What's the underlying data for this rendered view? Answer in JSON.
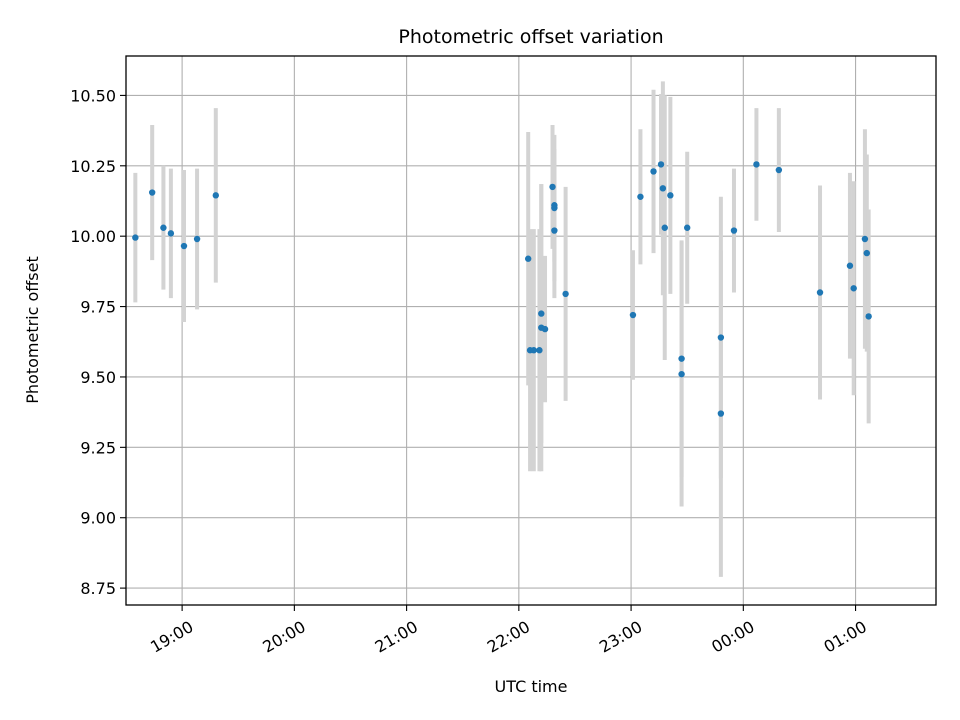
{
  "chart_data": {
    "type": "scatter",
    "title": "Photometric offset variation",
    "xlabel": "UTC time",
    "ylabel": "Photometric offset",
    "x_unit": "UTC time (HH:MM)",
    "xlim": [
      "18:30",
      "01:43"
    ],
    "ylim": [
      8.69,
      10.64
    ],
    "grid": true,
    "x_ticks": [
      "19:00",
      "20:00",
      "21:00",
      "22:00",
      "23:00",
      "00:00",
      "01:00"
    ],
    "y_ticks": [
      "8.75",
      "9.00",
      "9.25",
      "9.50",
      "9.75",
      "10.00",
      "10.25",
      "10.50"
    ],
    "colors": {
      "marker": "#1f77b4",
      "errorbar": "#d3d3d3",
      "grid": "#b0b0b0"
    },
    "points": [
      {
        "x": "18:35",
        "y": 9.995,
        "err": 0.23
      },
      {
        "x": "18:44",
        "y": 10.155,
        "err": 0.24
      },
      {
        "x": "18:50",
        "y": 10.03,
        "err": 0.22
      },
      {
        "x": "18:54",
        "y": 10.01,
        "err": 0.23
      },
      {
        "x": "19:01",
        "y": 9.965,
        "err": 0.27
      },
      {
        "x": "19:08",
        "y": 9.99,
        "err": 0.25
      },
      {
        "x": "19:18",
        "y": 10.145,
        "err": 0.31
      },
      {
        "x": "22:05",
        "y": 9.92,
        "err": 0.45
      },
      {
        "x": "22:06",
        "y": 9.595,
        "err": 0.43
      },
      {
        "x": "22:08",
        "y": 9.595,
        "err": 0.43
      },
      {
        "x": "22:11",
        "y": 9.595,
        "err": 0.43
      },
      {
        "x": "22:12",
        "y": 9.675,
        "err": 0.51
      },
      {
        "x": "22:12",
        "y": 9.725,
        "err": 0.46
      },
      {
        "x": "22:14",
        "y": 9.67,
        "err": 0.26
      },
      {
        "x": "22:18",
        "y": 10.175,
        "err": 0.22
      },
      {
        "x": "22:19",
        "y": 10.11,
        "err": 0.2
      },
      {
        "x": "22:19",
        "y": 10.1,
        "err": 0.26
      },
      {
        "x": "22:19",
        "y": 10.02,
        "err": 0.24
      },
      {
        "x": "22:25",
        "y": 9.795,
        "err": 0.38
      },
      {
        "x": "23:01",
        "y": 9.72,
        "err": 0.23
      },
      {
        "x": "23:05",
        "y": 10.14,
        "err": 0.24
      },
      {
        "x": "23:12",
        "y": 10.23,
        "err": 0.29
      },
      {
        "x": "23:16",
        "y": 10.255,
        "err": 0.25
      },
      {
        "x": "23:17",
        "y": 10.17,
        "err": 0.38
      },
      {
        "x": "23:18",
        "y": 10.03,
        "err": 0.47
      },
      {
        "x": "23:21",
        "y": 10.145,
        "err": 0.35
      },
      {
        "x": "23:27",
        "y": 9.565,
        "err": 0.42
      },
      {
        "x": "23:27",
        "y": 9.51,
        "err": 0.47
      },
      {
        "x": "23:30",
        "y": 10.03,
        "err": 0.27
      },
      {
        "x": "23:48",
        "y": 9.64,
        "err": 0.5
      },
      {
        "x": "23:48",
        "y": 9.37,
        "err": 0.58
      },
      {
        "x": "23:55",
        "y": 10.02,
        "err": 0.22
      },
      {
        "x": "00:07",
        "y": 10.255,
        "err": 0.2
      },
      {
        "x": "00:19",
        "y": 10.235,
        "err": 0.22
      },
      {
        "x": "00:41",
        "y": 9.8,
        "err": 0.38
      },
      {
        "x": "00:57",
        "y": 9.895,
        "err": 0.33
      },
      {
        "x": "00:59",
        "y": 9.815,
        "err": 0.38
      },
      {
        "x": "01:05",
        "y": 9.99,
        "err": 0.39
      },
      {
        "x": "01:06",
        "y": 9.94,
        "err": 0.35
      },
      {
        "x": "01:07",
        "y": 9.715,
        "err": 0.38
      }
    ]
  }
}
